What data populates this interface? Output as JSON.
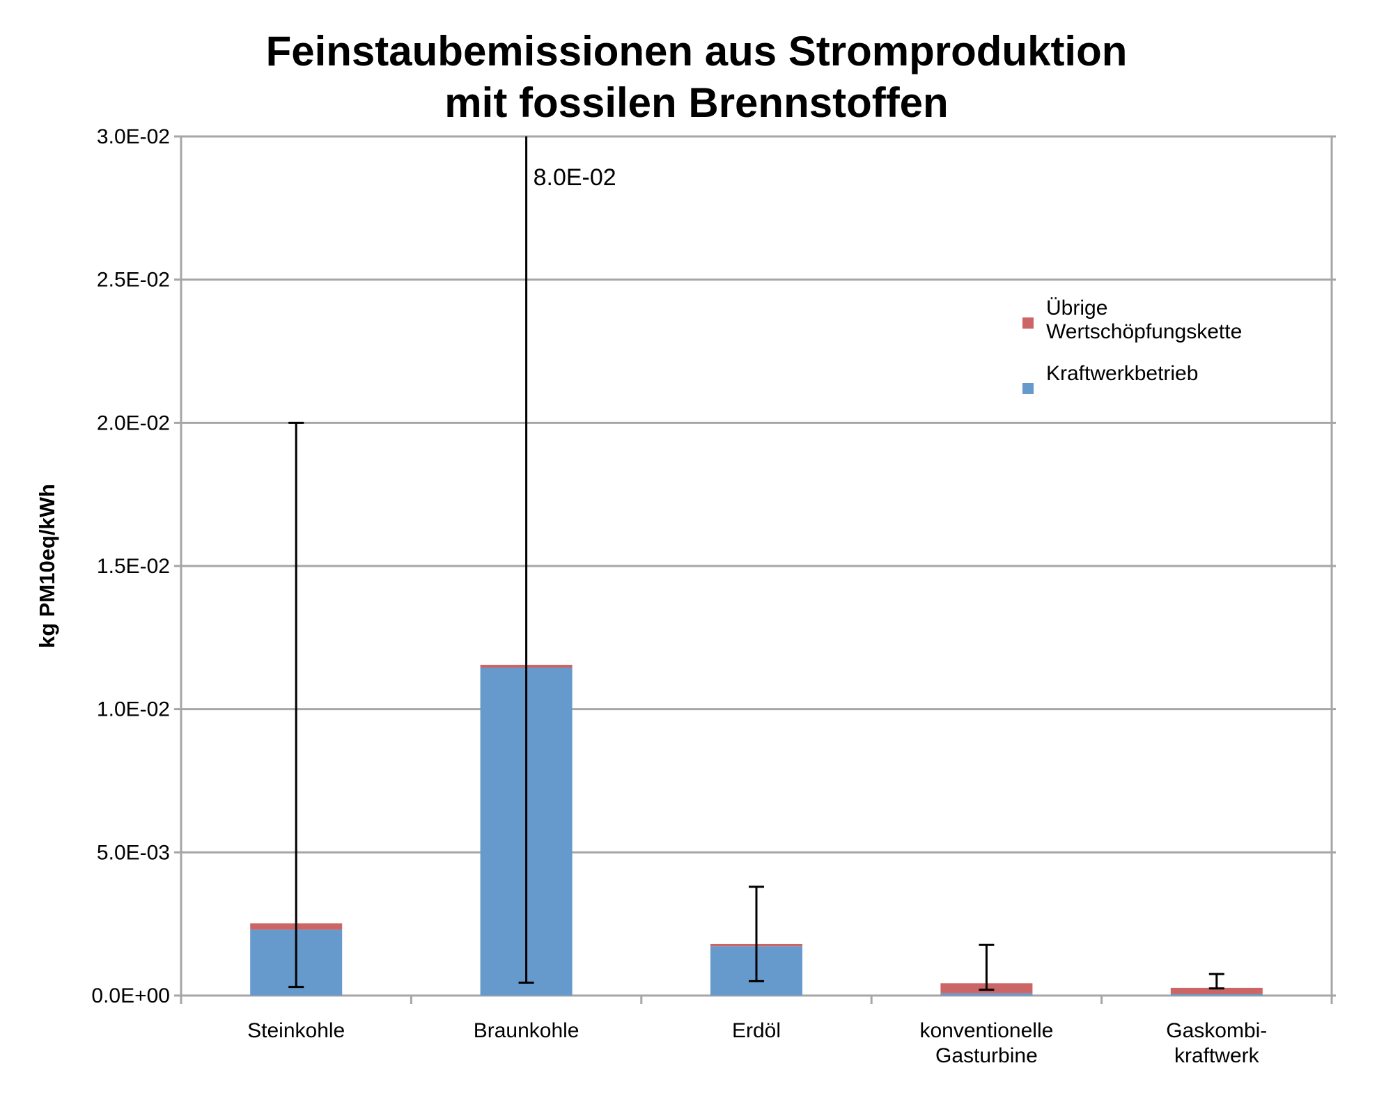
{
  "chart_data": {
    "type": "bar",
    "stacked": true,
    "title_lines": [
      "Feinstaubemissionen aus Stromproduktion",
      "mit fossilen Brennstoffen"
    ],
    "ylabel": "kg PM10eq/kWh",
    "xlabel": "",
    "ylim": [
      0,
      0.03
    ],
    "y_ticks": [
      {
        "value": 0.0,
        "label": "0.0E+00"
      },
      {
        "value": 0.005,
        "label": "5.0E-03"
      },
      {
        "value": 0.01,
        "label": "1.0E-02"
      },
      {
        "value": 0.015,
        "label": "1.5E-02"
      },
      {
        "value": 0.02,
        "label": "2.0E-02"
      },
      {
        "value": 0.025,
        "label": "2.5E-02"
      },
      {
        "value": 0.03,
        "label": "3.0E-02"
      }
    ],
    "grid": true,
    "categories": [
      {
        "lines": [
          "Steinkohle"
        ]
      },
      {
        "lines": [
          "Braunkohle"
        ]
      },
      {
        "lines": [
          "Erdöl"
        ]
      },
      {
        "lines": [
          "konventionelle",
          "Gasturbine"
        ]
      },
      {
        "lines": [
          "Gaskombi-",
          "kraftwerk"
        ]
      }
    ],
    "series": [
      {
        "name": "Kraftwerkbetrieb",
        "color": "#6699cc",
        "values": [
          0.0023,
          0.01145,
          0.00172,
          8e-05,
          5e-05
        ]
      },
      {
        "name_lines": [
          "Übrige",
          "Wertschöpfungskette"
        ],
        "color": "#cc6666",
        "values": [
          0.00022,
          0.0001,
          8e-05,
          0.00035,
          0.00022
        ]
      }
    ],
    "error_bars": [
      {
        "low": 0.0003,
        "high": 0.02
      },
      {
        "low": 0.00045,
        "high": 0.03,
        "clipped_label": "8.0E-02"
      },
      {
        "low": 0.0005,
        "high": 0.0038
      },
      {
        "low": 0.0002,
        "high": 0.00177
      },
      {
        "low": 0.00025,
        "high": 0.00075
      }
    ],
    "legend_position": "top-right",
    "legend_order": [
      1,
      0
    ]
  }
}
